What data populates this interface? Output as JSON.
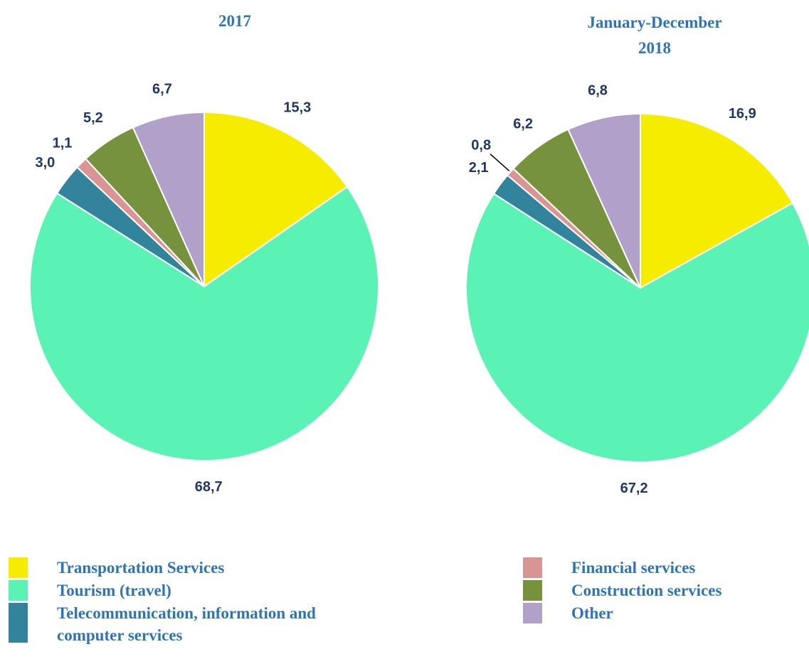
{
  "chart_data": [
    {
      "type": "pie",
      "title": "2017",
      "values": [
        15.3,
        68.7,
        3.0,
        1.1,
        5.2,
        6.7
      ],
      "value_labels": [
        "15,3",
        "68,7",
        "3,0",
        "1,1",
        "5,2",
        "6,7"
      ]
    },
    {
      "type": "pie",
      "title": "January-December 2018",
      "values": [
        16.9,
        67.2,
        2.1,
        0.8,
        6.2,
        6.8
      ],
      "value_labels": [
        "16,9",
        "67,2",
        "2,1",
        "0,8",
        "6,2",
        "6,8"
      ]
    }
  ],
  "legend": {
    "categories": [
      "Transportation Services",
      "Tourism (travel)",
      "Telecommunication, information and computer services",
      "Financial services",
      "Construction services",
      "Other"
    ],
    "colors": [
      "#f5ec00",
      "#5af2b5",
      "#31849b",
      "#d99594",
      "#76923c",
      "#b1a0c7"
    ]
  }
}
